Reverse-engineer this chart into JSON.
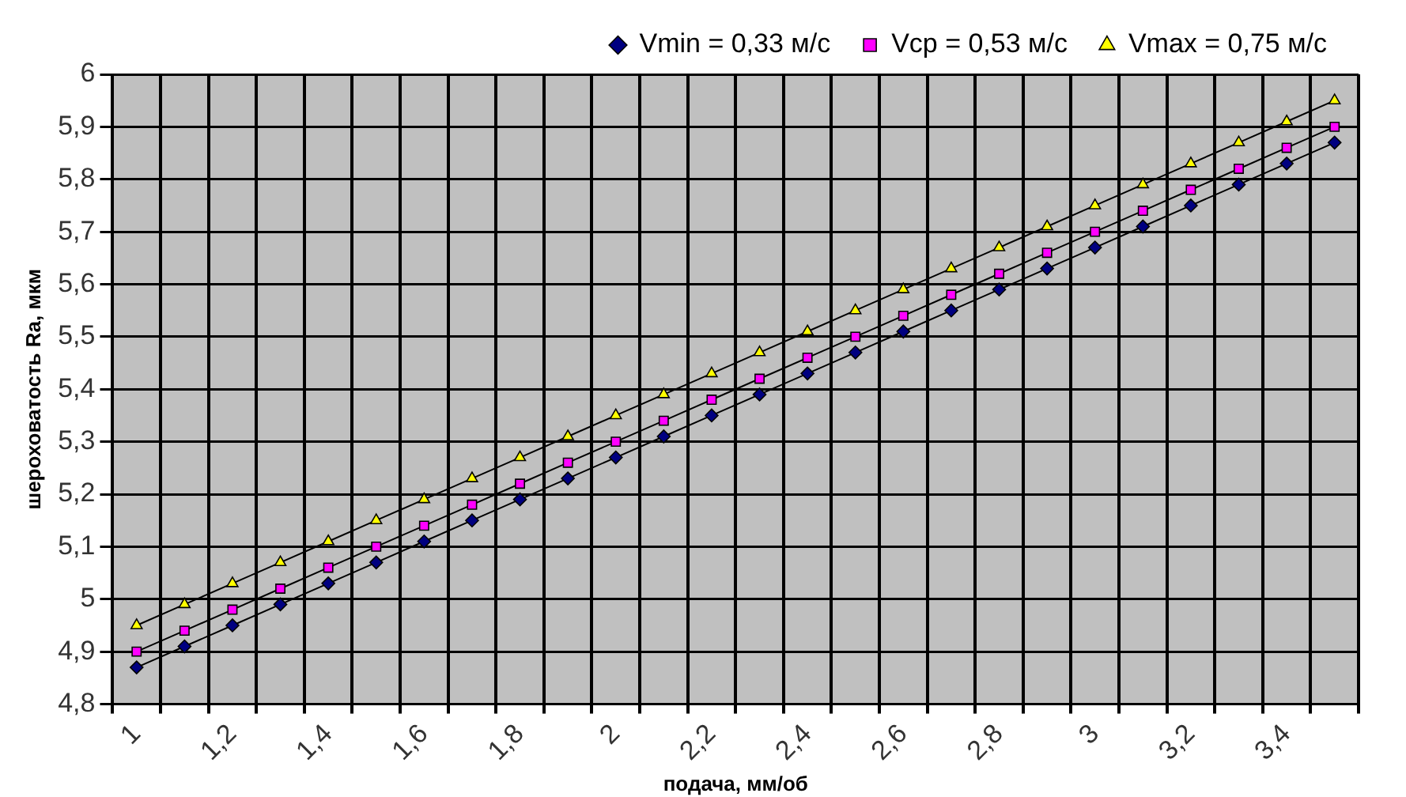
{
  "chart_data": {
    "type": "line",
    "xlabel": "подача, мм/об",
    "ylabel": "шероховатость Ra, мкм",
    "categories": [
      "1",
      null,
      "1,2",
      null,
      "1,4",
      null,
      "1,6",
      null,
      "1,8",
      null,
      "2",
      null,
      "2,2",
      null,
      "2,4",
      null,
      "2,6",
      null,
      "2,8",
      null,
      "3",
      null,
      "3,2",
      null,
      "3,4",
      null
    ],
    "series": [
      {
        "name": "Vmin = 0,33 м/с",
        "color": "#000080",
        "marker": "diamond",
        "values": [
          4.87,
          4.91,
          4.95,
          4.99,
          5.03,
          5.07,
          5.11,
          5.15,
          5.19,
          5.23,
          5.27,
          5.31,
          5.35,
          5.39,
          5.43,
          5.47,
          5.51,
          5.55,
          5.59,
          5.63,
          5.67,
          5.71,
          5.75,
          5.79,
          5.83,
          5.87
        ]
      },
      {
        "name": "Vср = 0,53 м/с",
        "color": "#ff00ff",
        "marker": "square",
        "values": [
          4.9,
          4.94,
          4.98,
          5.02,
          5.06,
          5.1,
          5.14,
          5.18,
          5.22,
          5.26,
          5.3,
          5.34,
          5.38,
          5.42,
          5.46,
          5.5,
          5.54,
          5.58,
          5.62,
          5.66,
          5.7,
          5.74,
          5.78,
          5.82,
          5.86,
          5.9
        ]
      },
      {
        "name": "Vmax = 0,75 м/с",
        "color": "#ffff00",
        "marker": "triangle",
        "values": [
          4.95,
          4.99,
          5.03,
          5.07,
          5.11,
          5.15,
          5.19,
          5.23,
          5.27,
          5.31,
          5.35,
          5.39,
          5.43,
          5.47,
          5.51,
          5.55,
          5.59,
          5.63,
          5.67,
          5.71,
          5.75,
          5.79,
          5.83,
          5.87,
          5.91,
          5.95
        ]
      }
    ],
    "ylim": [
      4.8,
      6
    ],
    "yticks": [
      {
        "value": 4.8,
        "label": "4,8"
      },
      {
        "value": 4.9,
        "label": "4,9"
      },
      {
        "value": 5,
        "label": "5"
      },
      {
        "value": 5.1,
        "label": "5,1"
      },
      {
        "value": 5.2,
        "label": "5,2"
      },
      {
        "value": 5.3,
        "label": "5,3"
      },
      {
        "value": 5.4,
        "label": "5,4"
      },
      {
        "value": 5.5,
        "label": "5,5"
      },
      {
        "value": 5.6,
        "label": "5,6"
      },
      {
        "value": 5.7,
        "label": "5,7"
      },
      {
        "value": 5.8,
        "label": "5,8"
      },
      {
        "value": 5.9,
        "label": "5,9"
      },
      {
        "value": 6,
        "label": "6"
      }
    ],
    "grid": true,
    "legend": "top right",
    "line_style": "solid"
  }
}
